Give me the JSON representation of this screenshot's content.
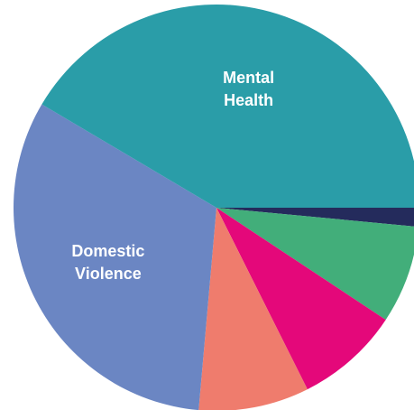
{
  "chart_data": {
    "type": "pie",
    "slices": [
      {
        "label": "",
        "value": 1.5,
        "color": "#242B5C"
      },
      {
        "label": "",
        "value": 7.8,
        "color": "#42AE7A"
      },
      {
        "label": "",
        "value": 8.3,
        "color": "#E4087A"
      },
      {
        "label": "",
        "value": 8.8,
        "color": "#EF7C6D"
      },
      {
        "label": "Domestic Violence",
        "label_lines": [
          "Domestic",
          "Violence"
        ],
        "value": 32.1,
        "color": "#6B86C3"
      },
      {
        "label": "Mental Health",
        "label_lines": [
          "Mental",
          "Health"
        ],
        "value": 41.5,
        "color": "#2A9DA8"
      }
    ],
    "start_angle_deg": 0,
    "direction": "clockwise",
    "legend": "none"
  }
}
